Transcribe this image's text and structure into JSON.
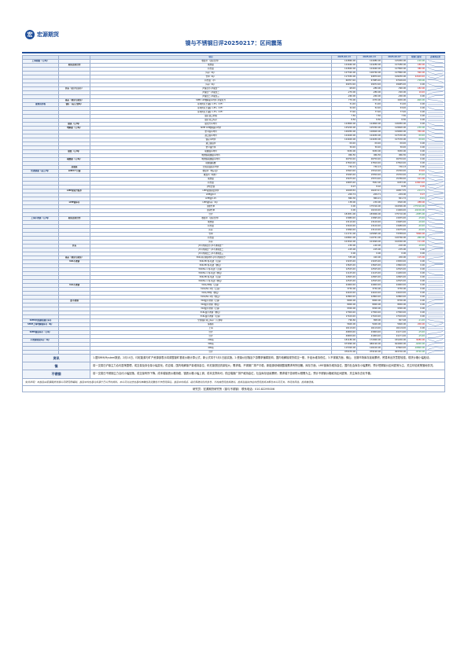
{
  "header": {
    "logo_text": "宏源期货",
    "title": "镍与不锈钢日评20250217：区间震荡"
  },
  "columns": [
    "",
    "",
    "项目",
    "2025-02-14",
    "2025-02-13",
    "2025-02-07",
    "较前日变化",
    "近两周走势"
  ],
  "rows": [
    {
      "sec": "上海期镍（元/吨）",
      "grp": "",
      "item": "收盘价（活跃合约）",
      "v1": "124860.00",
      "v2": "124980.00",
      "v3": "125950.00",
      "chg": "-120.00",
      "dir": "dn"
    },
    {
      "sec": "",
      "grp": "期货连续合约",
      "item": "成交量",
      "v1": "124460.00",
      "v2": "124280.00",
      "v3": "127280.00",
      "chg": "180.00",
      "dir": "up"
    },
    {
      "sec": "",
      "grp": "",
      "item": "持仓量",
      "v1": "124840.00",
      "v2": "124460.00",
      "v3": "127800.00",
      "chg": "380.00",
      "dir": "up"
    },
    {
      "sec": "",
      "grp": "",
      "item": "库存（吨）",
      "v1": "127320.00",
      "v2": "126760.00",
      "v3": "127860.00",
      "chg": "560.00",
      "dir": "up"
    },
    {
      "sec": "",
      "grp": "",
      "item": "仓单（吨）",
      "v1": "117030.00",
      "v2": "94870.00",
      "v3": "109250.00",
      "chg": "22160.00",
      "dir": "up"
    },
    {
      "sec": "",
      "grp": "",
      "item": "持仓量（手）",
      "v1": "66357.00",
      "v2": "67085.00",
      "v3": "67166.00",
      "chg": "-728.00",
      "dir": "dn"
    },
    {
      "sec": "",
      "grp": "",
      "item": "库存（吨）",
      "v1": "29072.00",
      "v2": "29072.00",
      "v3": "29485.00",
      "chg": "0.00",
      "dir": ""
    },
    {
      "sec": "",
      "grp": "价差（近月与远月）",
      "item": "沪镍近月-沪镍连一",
      "v1": "-98.00",
      "v2": "-280.00",
      "v3": "-390.00",
      "chg": "182.00",
      "dir": "up"
    },
    {
      "sec": "",
      "grp": "",
      "item": "沪镍连一-沪镍连二",
      "v1": "-270.00",
      "v2": "-280.00",
      "v3": "-320.00",
      "chg": "10.00",
      "dir": "up"
    },
    {
      "sec": "",
      "grp": "",
      "item": "沪镍连二-沪镍连三",
      "v1": "-260.00",
      "v2": "-260.00",
      "v3": "-290.00",
      "chg": "0.00",
      "dir": ""
    },
    {
      "sec": "",
      "grp": "基差（现货与期货）",
      "item": "SMM 1#电解镍平均价-沪镍主力",
      "v1": "770.00",
      "v2": "1370.00",
      "v3": "1630.00",
      "chg": "-600.00",
      "dir": "dn"
    },
    {
      "sec": "镍现货价格",
      "grp": "镍矿（美元/湿吨）",
      "item": "菲律宾红土镍矿1.5%（CIF）",
      "v1": "51.00",
      "v2": "51.00",
      "v3": "51.00",
      "chg": "0.00",
      "dir": ""
    },
    {
      "sec": "",
      "grp": "",
      "item": "菲律宾红土镍矿1.8%（CIF）",
      "v1": "52.00",
      "v2": "52.00",
      "v3": "53.00",
      "chg": "0.00",
      "dir": ""
    },
    {
      "sec": "",
      "grp": "",
      "item": "菲律宾红土镍矿1.3%（CIF）",
      "v1": "77.00",
      "v2": "77.00",
      "v3": "77.00",
      "chg": "0.00",
      "dir": ""
    },
    {
      "sec": "",
      "grp": "",
      "item": "镍矿进口价格",
      "v1": "7.50",
      "v2": "7.50",
      "v3": "7.50",
      "chg": "0.00",
      "dir": ""
    },
    {
      "sec": "",
      "grp": "",
      "item": "镍矿港口库存",
      "v1": "8.50",
      "v2": "8.50",
      "v3": "8.50",
      "chg": "0.00",
      "dir": ""
    },
    {
      "sec": "",
      "grp": "镍铁（元/吨）",
      "item": "镍主力平均价",
      "v1": "124800.00",
      "v2": "124800.00",
      "v3": "126950.00",
      "chg": "0.00",
      "dir": ""
    },
    {
      "sec": "",
      "grp": "电解镍（元/吨）",
      "item": "SMM 1#电解镍平均价",
      "v1": "125200.00",
      "v2": "125350.00",
      "v3": "129600.00",
      "chg": "-150.00",
      "dir": "dn"
    },
    {
      "sec": "",
      "grp": "",
      "item": "金川镍平均价",
      "v1": "126950.00",
      "v2": "126600.00",
      "v3": "129900.00",
      "chg": "350.00",
      "dir": "up"
    },
    {
      "sec": "",
      "grp": "",
      "item": "进口镍平均价",
      "v1": "124400.00",
      "v2": "124450.00",
      "v3": "127150.00",
      "chg": "-50.00",
      "dir": "dn"
    },
    {
      "sec": "",
      "grp": "",
      "item": "镍豆平均价",
      "v1": "124400.00",
      "v2": "124450.00",
      "v3": "127150.00",
      "chg": "-50.00",
      "dir": "dn"
    },
    {
      "sec": "",
      "grp": "",
      "item": "进口镍溢价",
      "v1": "-50.00",
      "v2": "-50.00",
      "v3": "-50.00",
      "chg": "0.00",
      "dir": ""
    },
    {
      "sec": "",
      "grp": "",
      "item": "金川镍升水",
      "v1": "50.00",
      "v2": "50.00",
      "v3": "50.00",
      "chg": "0.00",
      "dir": ""
    },
    {
      "sec": "",
      "grp": "镍盐（元/吨）",
      "item": "硫酸镍平均价",
      "v1": "3450.00",
      "v2": "3450.00",
      "v3": "3450.00",
      "chg": "0.00",
      "dir": ""
    },
    {
      "sec": "",
      "grp": "",
      "item": "电池级硫酸镍平均价",
      "v1": "966.50",
      "v2": "966.50",
      "v3": "966.50",
      "chg": "0.00",
      "dir": ""
    },
    {
      "sec": "",
      "grp": "硫酸镍（元/吨）",
      "item": "电池级硫酸镍平均价",
      "v1": "26750.00",
      "v2": "26750.00",
      "v3": "26750.00",
      "chg": "0.00",
      "dir": ""
    },
    {
      "sec": "",
      "grp": "",
      "item": "硫酸镍指数",
      "v1": "27810.00",
      "v2": "27810.00",
      "v3": "27810.00",
      "chg": "0.00",
      "dir": ""
    },
    {
      "sec": "",
      "grp": "高镍铁",
      "item": "全国高镍铁平均价",
      "v1": "730.13",
      "v2": "730.13",
      "v3": "730.13",
      "chg": "0.00",
      "dir": ""
    },
    {
      "sec": "伦敦期镍（美元/吨）",
      "grp": "LME3个月镍",
      "item": "收盘价（电子盘）",
      "v1": "15563.00",
      "v2": "15510.00",
      "v3": "15760.00",
      "chg": "53.00",
      "dir": "up"
    },
    {
      "sec": "",
      "grp": "",
      "item": "收盘价（场外）",
      "v1": "15495.00",
      "v2": "15550.00",
      "v3": "15700.00",
      "chg": "-55.00",
      "dir": "dn"
    },
    {
      "sec": "",
      "grp": "",
      "item": "成交量",
      "v1": "15675.00",
      "v2": "15574.00",
      "v3": "15786.00",
      "chg": "101.00",
      "dir": "up"
    },
    {
      "sec": "",
      "grp": "",
      "item": "持仓量",
      "v1": "19655.00",
      "v2": "7652.00",
      "v3": "6033.00",
      "chg": "12003.00",
      "dir": "up"
    },
    {
      "sec": "",
      "grp": "",
      "item": "沪伦比值",
      "v1": "8.07",
      "v2": "8.02",
      "v3": "8.05",
      "chg": "0.05",
      "dir": "up"
    },
    {
      "sec": "",
      "grp": "LME现货升贴水",
      "item": "LME镍现货结算价",
      "v1": "16028.50",
      "v2": "16243.21",
      "v3": "16657.35",
      "chg": "-214.71",
      "dir": "dn"
    },
    {
      "sec": "",
      "grp": "",
      "item": "LME镍0-3",
      "v1": "-200.74",
      "v2": "-209.71",
      "v3": "-229.00",
      "chg": "8.97",
      "dir": "up"
    },
    {
      "sec": "",
      "grp": "",
      "item": "LME镍3-15",
      "v1": "860.30",
      "v2": "869.21",
      "v3": "841.72",
      "chg": "-8.91",
      "dir": "dn"
    },
    {
      "sec": "",
      "grp": "LME镍库存",
      "item": "LME镍库存（吨）",
      "v1": "138.00",
      "v2": "-150.00",
      "v3": "1500.00",
      "chg": "288.00",
      "dir": "up"
    },
    {
      "sec": "",
      "grp": "",
      "item": "注册仓单",
      "v1": "0.00",
      "v2": "175316.00",
      "v3": "164306.00",
      "chg": "-175316.00",
      "dir": "dn"
    },
    {
      "sec": "",
      "grp": "",
      "item": "注销仓单",
      "v1": "0.00",
      "v2": "10216.00",
      "v3": "11406.00",
      "chg": "-10216.00",
      "dir": "dn"
    },
    {
      "sec": "",
      "grp": "",
      "item": "合计",
      "v1": "181851.00",
      "v2": "183906.00",
      "v3": "175710.00",
      "chg": "-2055.00",
      "dir": "dn"
    },
    {
      "sec": "上海不锈钢（元/吨）",
      "grp": "期货连续合约",
      "item": "收盘价（活跃合约）",
      "v1": "13080.00",
      "v2": "13095.00",
      "v3": "13255.00",
      "chg": "-15.00",
      "dir": "dn"
    },
    {
      "sec": "",
      "grp": "",
      "item": "成交量",
      "v1": "13110.00",
      "v2": "13120.00",
      "v3": "13265.00",
      "chg": "-10.00",
      "dir": "dn"
    },
    {
      "sec": "",
      "grp": "",
      "item": "持仓量",
      "v1": "13100.00",
      "v2": "13120.00",
      "v3": "13280.00",
      "chg": "-20.00",
      "dir": "dn"
    },
    {
      "sec": "",
      "grp": "",
      "item": "库存",
      "v1": "13090.00",
      "v2": "13110.00",
      "v3": "13275.00",
      "chg": "-20.00",
      "dir": "dn"
    },
    {
      "sec": "",
      "grp": "",
      "item": "仓单",
      "v1": "111741.00",
      "v2": "105895.00",
      "v3": "73788.00",
      "chg": "5846.00",
      "dir": "up"
    },
    {
      "sec": "",
      "grp": "",
      "item": "持仓量",
      "v1": "109801.00",
      "v2": "110761.00",
      "v3": "120766.00",
      "chg": "-960.00",
      "dir": "dn"
    },
    {
      "sec": "",
      "grp": "",
      "item": "库存",
      "v1": "101810.00",
      "v2": "101699.00",
      "v3": "102290.00",
      "chg": "111.00",
      "dir": "up"
    },
    {
      "sec": "",
      "grp": "价差",
      "item": "沪不锈钢近月-沪不锈钢连一",
      "v1": "-150.00",
      "v2": "-140.00",
      "v3": "-100.00",
      "chg": "-10.00",
      "dir": "dn"
    },
    {
      "sec": "",
      "grp": "",
      "item": "沪不锈钢连一-沪不锈钢连二",
      "v1": "-105.00",
      "v2": "-105.00",
      "v3": "-155.00",
      "chg": "0.00",
      "dir": ""
    },
    {
      "sec": "",
      "grp": "",
      "item": "沪不锈钢连二-沪不锈钢连三",
      "v1": "0.00",
      "v2": "0.00",
      "v3": "0.00",
      "chg": "0.00",
      "dir": ""
    },
    {
      "sec": "",
      "grp": "基差（现货与期货）",
      "item": "304冷轧卷板均价-沪不锈钢主力",
      "v1": "535.00",
      "v2": "420.00",
      "v3": "200.00",
      "chg": "115.00",
      "dir": "up"
    },
    {
      "sec": "",
      "grp": "304不锈钢",
      "item": "304/2B 卷-切边（无锡）",
      "v1": "13225.00",
      "v2": "13225.00",
      "v3": "13450.00",
      "chg": "0.00",
      "dir": ""
    },
    {
      "sec": "",
      "grp": "",
      "item": "304/2B 卷-切边（佛山）",
      "v1": "13625.00",
      "v2": "13625.00",
      "v3": "13600.00",
      "chg": "0.00",
      "dir": ""
    },
    {
      "sec": "",
      "grp": "",
      "item": "304/No.1 卷-切边（无锡）",
      "v1": "12525.00",
      "v2": "12525.00",
      "v3": "12525.00",
      "chg": "0.00",
      "dir": ""
    },
    {
      "sec": "",
      "grp": "",
      "item": "304/No.1 卷-切边（佛山）",
      "v1": "11125.00",
      "v2": "11125.00",
      "v3": "11200.00",
      "chg": "0.00",
      "dir": ""
    },
    {
      "sec": "",
      "grp": "",
      "item": "304/2B 卷-毛边（无锡）",
      "v1": "12825.00",
      "v2": "12825.00",
      "v3": "12825.00",
      "chg": "0.00",
      "dir": ""
    },
    {
      "sec": "",
      "grp": "",
      "item": "304/No.1 卷-毛边（佛山）",
      "v1": "12525.00",
      "v2": "12525.00",
      "v3": "12525.00",
      "chg": "0.00",
      "dir": ""
    },
    {
      "sec": "",
      "grp": "316不锈钢",
      "item": "316L/2B卷（无锡）",
      "v1": "24000.00",
      "v2": "24000.00",
      "v3": "24000.00",
      "chg": "0.00",
      "dir": ""
    },
    {
      "sec": "",
      "grp": "",
      "item": "316L/No.1卷（无锡）",
      "v1": "3750.00",
      "v2": "3750.00",
      "v3": "3750.00",
      "chg": "0.00",
      "dir": ""
    },
    {
      "sec": "",
      "grp": "",
      "item": "316L/2B卷（佛山）",
      "v1": "24100.00",
      "v2": "24100.00",
      "v3": "24100.00",
      "chg": "0.00",
      "dir": ""
    },
    {
      "sec": "",
      "grp": "",
      "item": "316L/No.1卷（佛山）",
      "v1": "22800.00",
      "v2": "22800.00",
      "v3": "22800.00",
      "chg": "0.00",
      "dir": ""
    },
    {
      "sec": "",
      "grp": "废不锈钢",
      "item": "304废不锈钢（无锡）",
      "v1": "8900.00",
      "v2": "8900.00",
      "v3": "8700.00",
      "chg": "0.00",
      "dir": ""
    },
    {
      "sec": "",
      "grp": "",
      "item": "304废不锈钢（佛山）",
      "v1": "8900.00",
      "v2": "8900.00",
      "v3": "8650.00",
      "chg": "0.00",
      "dir": ""
    },
    {
      "sec": "",
      "grp": "",
      "item": "316废不锈钢（无锡）",
      "v1": "9300.00",
      "v2": "9300.00",
      "v3": "9300.00",
      "chg": "0.00",
      "dir": ""
    },
    {
      "sec": "",
      "grp": "",
      "item": "316L废不锈钢（佛山）",
      "v1": "17300.00",
      "v2": "17300.00",
      "v3": "17300.00",
      "chg": "0.00",
      "dir": ""
    },
    {
      "sec": "",
      "grp": "",
      "item": "316L废不锈钢（无锡）",
      "v1": "17100.00",
      "v2": "17100.00",
      "v3": "17100.00",
      "chg": "0.00",
      "dir": ""
    },
    {
      "sec": "SMM中国镍和镍矿库存",
      "grp": "",
      "item": "全国镍矿港口库存（万湿吨）",
      "v1": "796.60",
      "v2": "808.00",
      "v3": "827.48",
      "chg": "-11.40",
      "dir": "dn"
    },
    {
      "sec": "SMM上海电解镍库存（吨）",
      "grp": "",
      "item": "保税区",
      "v1": "5600.00",
      "v2": "5400.00",
      "v3": "5600.00",
      "chg": "200.00",
      "dir": "up"
    },
    {
      "sec": "",
      "grp": "",
      "item": "上海",
      "v1": "16119.00",
      "v2": "16119.00",
      "v3": "16119.00",
      "chg": "0.00",
      "dir": ""
    },
    {
      "sec": "SMM镍铁库存（万吨）",
      "grp": "",
      "item": "合计",
      "v1": "49659.00",
      "v2": "43909.00",
      "v3": "41171.00",
      "chg": "-15.00",
      "dir": "dn"
    },
    {
      "sec": "",
      "grp": "",
      "item": "合计",
      "v1": "49659.00",
      "v2": "41909.00",
      "v3": "41171.00",
      "chg": "-15.00",
      "dir": "dn"
    },
    {
      "sec": "不锈钢现货库存（吨）",
      "grp": "",
      "item": "200系",
      "v1": "181180.00",
      "v2": "172900.00",
      "v3": "181200.00",
      "chg": "8280.00",
      "dir": "up"
    },
    {
      "sec": "",
      "grp": "",
      "item": "300系",
      "v1": "673990.00",
      "v2": "680190.00",
      "v3": "624900.00",
      "chg": "-6200.00",
      "dir": "dn"
    },
    {
      "sec": "",
      "grp": "",
      "item": "400系",
      "v1": "115300.00",
      "v2": "126100.00",
      "v3": "97600.00",
      "chg": "-10800.00",
      "dir": "dn"
    },
    {
      "sec": "",
      "grp": "",
      "item": "合计",
      "v1": "970470.00",
      "v2": "979190.00",
      "v3": "903700.00",
      "chg": "-8720.00",
      "dir": "dn"
    }
  ],
  "notes": [
    {
      "label": "资讯",
      "text": "1.据SMM/Mysteel报道，2月14日，印尼能源与矿产资源部表示将调整镍矿基准价格计算公式，新公式将于3月1日起实施。2.受镍价回落及下游需求偏弱影响，国内电解镍现货成交一般，升贴水维持低位。3.不锈钢方面，佛山、无锡市场库存延续累积，贸易商出货意愿较强，现货价格小幅松动。"
    },
    {
      "label": "镍",
      "text": "前一交易日沪镍主力合约震荡整理，成交量及持仓量小幅变化。供应端，国内电解镍产量维持高位，印尼镍铁回流量较大；需求端，不锈钢厂排产平稳，新能源领域硫酸镍需求有所回暖。库存方面，LME镍库存维持高位，国内社会库存小幅累积。预计短期镍价区间震荡为主，关注印尼政策落地情况。"
    },
    {
      "label": "不锈钢",
      "text": "前一交易日不锈钢主力合约小幅回落，成交量有所下降。成本端镍铁价格持稳，铬铁价格小幅上调，成本支撑尚可；供应端钢厂排产维持高位，社会库存延续累积；需求端下游采购以刚需为主。预计不锈钢价格维持区间震荡，关注库存去化节奏。"
    }
  ],
  "notes_section_label": "投资策略",
  "disclaimer": "免责声明：本报告由宏源期货有限公司研究所编制，报告中的信息均来源于已公开的资料，本公司对这些信息的准确性及完整性不作任何保证。报告中的观点、结论和建议仅供参考，不构成任何投资建议。投资者据此作出的任何投资决策与本公司无关，市场有风险，投资需谨慎。",
  "footer": "研究员：宏源期货研究所（镍与不锈钢）    联系电话：010-82295006"
}
